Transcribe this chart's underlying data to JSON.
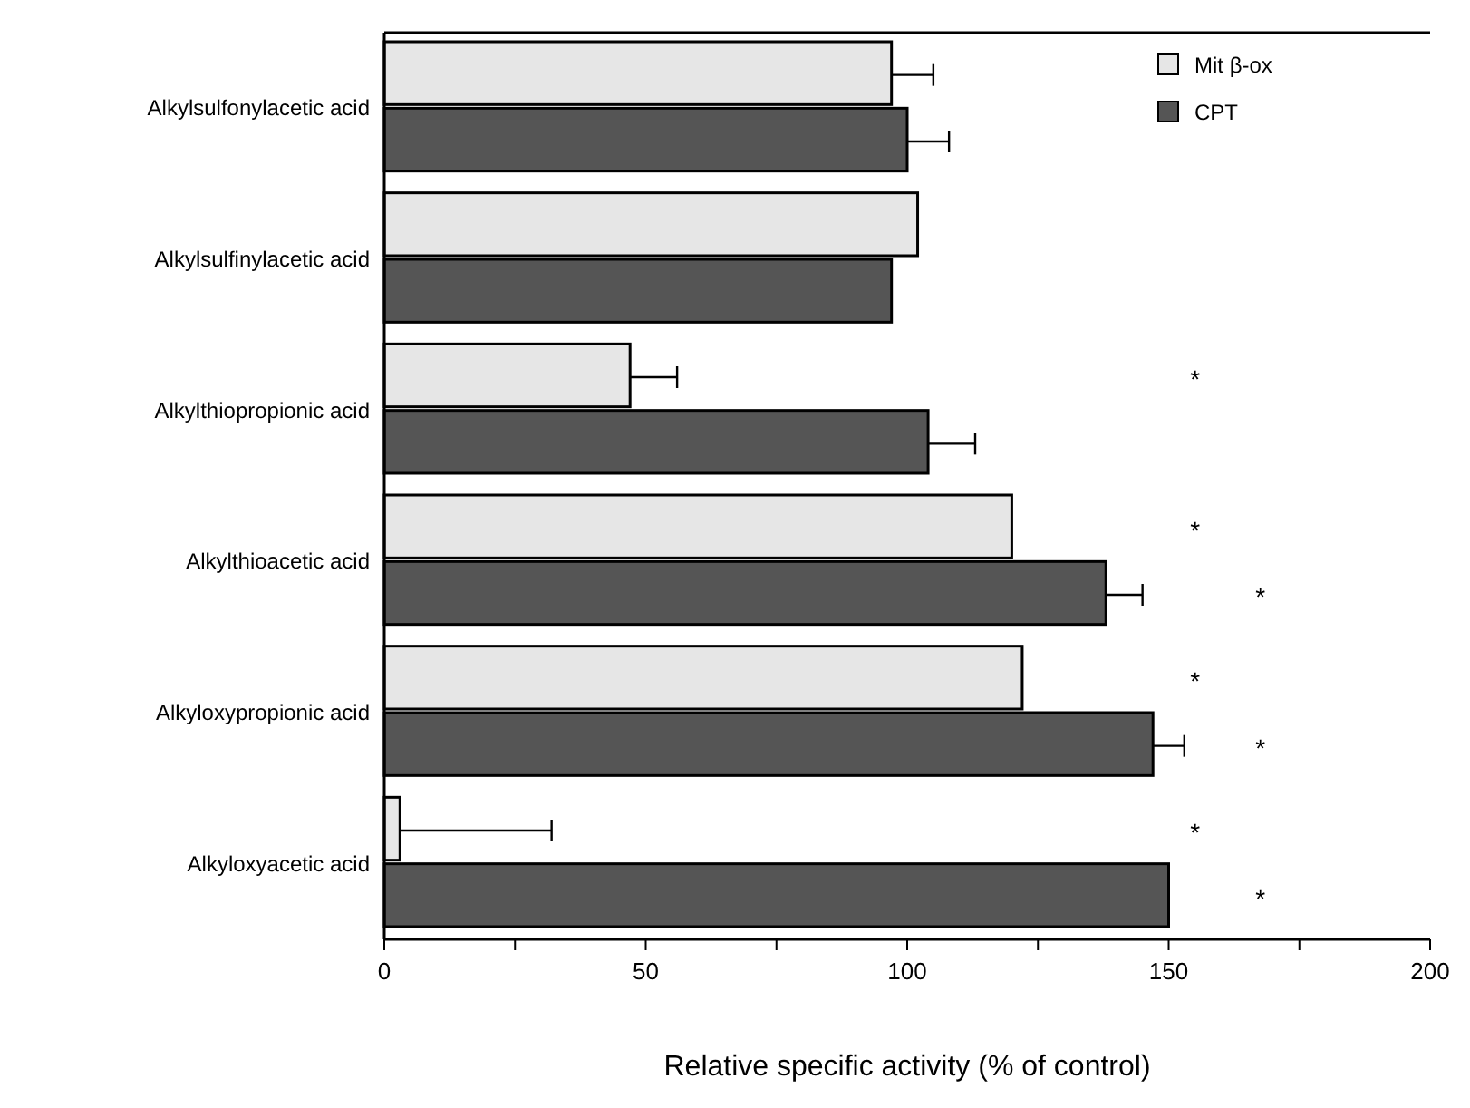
{
  "chart_data": {
    "type": "bar",
    "orientation": "horizontal",
    "xlabel": "Relative specific activity (% of control)",
    "categories": [
      "Alkylsulfonylacetic acid",
      "Alkylsulfinylacetic acid",
      "Alkylthiopropionic acid",
      "Alkylthioacetic acid",
      "Alkyloxypropionic acid",
      "Alkyloxyacetic acid"
    ],
    "series": [
      {
        "name": "Mit β-ox",
        "color": "#e6e6e6",
        "values": [
          97,
          102,
          47,
          120,
          122,
          3
        ],
        "errors": [
          8,
          null,
          9,
          null,
          null,
          29
        ],
        "value_labels": [
          null,
          null,
          "*",
          "*",
          "*",
          "*"
        ]
      },
      {
        "name": "CPT",
        "color": "#555555",
        "values": [
          100,
          97,
          104,
          138,
          147,
          150
        ],
        "errors": [
          8,
          null,
          9,
          7,
          6,
          null
        ],
        "value_labels": [
          null,
          null,
          null,
          "*",
          "*",
          "*"
        ]
      }
    ],
    "xlim": [
      0,
      200
    ],
    "xticks": [
      0,
      {
        "value": 25,
        "label": null
      },
      50,
      {
        "value": 75,
        "label": null
      },
      100,
      {
        "value": 125,
        "label": null
      },
      150,
      {
        "value": 175,
        "label": null
      },
      200
    ],
    "legend": "top right",
    "grid": false
  }
}
